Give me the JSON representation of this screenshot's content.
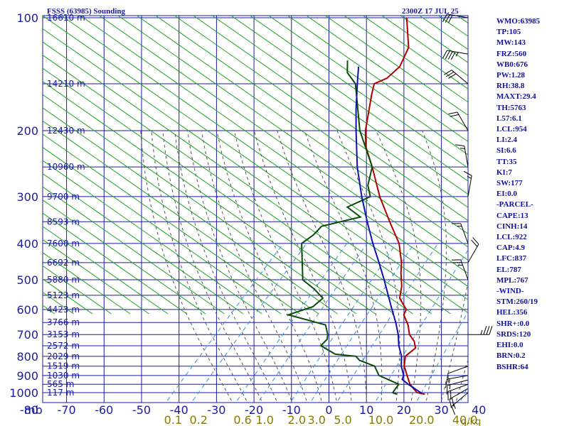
{
  "header": {
    "title": "FSSS (63985) Sounding",
    "datetime": "2300Z 17 JUL 25"
  },
  "indices": [
    "WMO:63985",
    "TP:105",
    "MW:143",
    "FRZ:560",
    "WB0:676",
    "PW:1.28",
    "RH:38.8",
    "MAXT:29.4",
    "TH:5763",
    "L57:6.1",
    "LCL:954",
    "LI:2.4",
    "SI:6.6",
    "TT:35",
    "KI:7",
    "SW:177",
    "EI:0.0",
    "-PARCEL-",
    "CAPE:13",
    "CINH:14",
    "LCL:922",
    "CAP:4.9",
    "LFC:837",
    "EL:787",
    "MPL:767",
    "-WIND-",
    "STM:260/19",
    "HEL:356",
    "SHR+:0.0",
    "SRDS:120",
    "EHI:0.0",
    "BRN:0.2",
    "BSHR:64"
  ],
  "colors": {
    "temperature": "#b00000",
    "dewpoint": "#0a4d0a",
    "parcel": "#1010b0",
    "grid": "#1a1aa8",
    "isotherm_label": "#1a1aa8",
    "dry_adiabat": "#19a319",
    "moist_adiabat": "#555555",
    "mixing_ratio": "#3a8fd6",
    "mixing_label": "#8a7a00",
    "wind_barb": "#000000"
  },
  "chart_data": {
    "type": "line",
    "chart": "skew-T log-p",
    "title": "FSSS (63985) Sounding",
    "xlabel": "",
    "ylabel": "mb",
    "ylim": [
      1000,
      100
    ],
    "pressure_ticks": [
      100,
      200,
      300,
      400,
      500,
      600,
      700,
      800,
      900,
      1000
    ],
    "pressure_lines": [
      100,
      150,
      200,
      250,
      300,
      350,
      400,
      450,
      500,
      550,
      600,
      650,
      700,
      750,
      800,
      850,
      900,
      950,
      1000
    ],
    "temperature_ticks": [
      -80,
      -70,
      -60,
      -50,
      -40,
      -30,
      -20,
      -10,
      0,
      10,
      20,
      30,
      40
    ],
    "height_labels": [
      {
        "p": 100,
        "label": "16610 m"
      },
      {
        "p": 150,
        "label": "14210 m"
      },
      {
        "p": 200,
        "label": "12430 m"
      },
      {
        "p": 250,
        "label": "10960 m"
      },
      {
        "p": 300,
        "label": "9700 m"
      },
      {
        "p": 350,
        "label": "8593 m"
      },
      {
        "p": 400,
        "label": "7600 m"
      },
      {
        "p": 450,
        "label": "6692 m"
      },
      {
        "p": 500,
        "label": "5880 m"
      },
      {
        "p": 550,
        "label": "5123 m"
      },
      {
        "p": 600,
        "label": "4423 m"
      },
      {
        "p": 650,
        "label": "3766 m"
      },
      {
        "p": 700,
        "label": "3153 m"
      },
      {
        "p": 750,
        "label": "2572 m"
      },
      {
        "p": 800,
        "label": "2029 m"
      },
      {
        "p": 850,
        "label": "1519 m"
      },
      {
        "p": 900,
        "label": "1030 m"
      },
      {
        "p": 950,
        "label": "565 m"
      },
      {
        "p": 1000,
        "label": "117 m"
      }
    ],
    "mixing_ratio_labels": [
      "0.1",
      "0.2",
      "0.6",
      "1.0",
      "2.0",
      "3.0",
      "5.0",
      "10.0",
      "20.0",
      "40.0"
    ],
    "mixing_ratio_unit": "g/kg",
    "series": [
      {
        "name": "Temperature",
        "points": [
          [
            1010,
            26
          ],
          [
            1000,
            23.5
          ],
          [
            950,
            19.5
          ],
          [
            900,
            16.5
          ],
          [
            850,
            13.4
          ],
          [
            800,
            11.2
          ],
          [
            760,
            11.8
          ],
          [
            730,
            9.8
          ],
          [
            700,
            6.8
          ],
          [
            660,
            4
          ],
          [
            620,
            0.3
          ],
          [
            600,
            -0.4
          ],
          [
            560,
            -5
          ],
          [
            520,
            -7.5
          ],
          [
            480,
            -11
          ],
          [
            450,
            -13.5
          ],
          [
            400,
            -19
          ],
          [
            350,
            -27
          ],
          [
            300,
            -36
          ],
          [
            250,
            -45.5
          ],
          [
            220,
            -52.5
          ],
          [
            200,
            -56.5
          ],
          [
            160,
            -64
          ],
          [
            150,
            -66
          ],
          [
            145,
            -64
          ],
          [
            135,
            -63.5
          ],
          [
            120,
            -66
          ],
          [
            100,
            -74
          ]
        ]
      },
      {
        "name": "Dewpoint",
        "points": [
          [
            1010,
            18.5
          ],
          [
            1000,
            17
          ],
          [
            950,
            16.5
          ],
          [
            900,
            9
          ],
          [
            850,
            5.5
          ],
          [
            820,
            0
          ],
          [
            800,
            -2
          ],
          [
            790,
            -8
          ],
          [
            750,
            -14
          ],
          [
            720,
            -14
          ],
          [
            700,
            -15
          ],
          [
            660,
            -18
          ],
          [
            620,
            -30.5
          ],
          [
            590,
            -26
          ],
          [
            560,
            -25.5
          ],
          [
            530,
            -30
          ],
          [
            500,
            -35.5
          ],
          [
            450,
            -40
          ],
          [
            400,
            -45
          ],
          [
            380,
            -44
          ],
          [
            360,
            -44
          ],
          [
            340,
            -36
          ],
          [
            320,
            -42
          ],
          [
            300,
            -38.5
          ],
          [
            280,
            -42
          ],
          [
            250,
            -45.5
          ],
          [
            200,
            -58
          ],
          [
            150,
            -71
          ],
          [
            140,
            -76
          ],
          [
            130,
            -79
          ]
        ]
      },
      {
        "name": "Parcel",
        "points": [
          [
            1005,
            25
          ],
          [
            950,
            19
          ],
          [
            922,
            16.2
          ],
          [
            900,
            15.6
          ],
          [
            850,
            12.6
          ],
          [
            800,
            10.2
          ],
          [
            750,
            6.8
          ],
          [
            700,
            3.8
          ],
          [
            650,
            0.1
          ],
          [
            600,
            -4.2
          ],
          [
            550,
            -8.8
          ],
          [
            500,
            -13.8
          ],
          [
            450,
            -19.5
          ],
          [
            400,
            -26
          ],
          [
            350,
            -33
          ],
          [
            300,
            -40.8
          ],
          [
            250,
            -49.5
          ],
          [
            200,
            -59
          ],
          [
            175,
            -64.5
          ],
          [
            150,
            -70.5
          ],
          [
            135,
            -74.5
          ]
        ]
      }
    ],
    "wind_barbs": [
      {
        "p": 1000,
        "dir": 230,
        "spd": 15
      },
      {
        "p": 975,
        "dir": 240,
        "spd": 20
      },
      {
        "p": 950,
        "dir": 250,
        "spd": 20
      },
      {
        "p": 925,
        "dir": 255,
        "spd": 15
      },
      {
        "p": 900,
        "dir": 260,
        "spd": 15
      },
      {
        "p": 850,
        "dir": 250,
        "spd": 10
      },
      {
        "p": 700,
        "dir": 90,
        "spd": 35
      },
      {
        "p": 500,
        "dir": 340,
        "spd": 25
      },
      {
        "p": 450,
        "dir": 30,
        "spd": 20
      },
      {
        "p": 400,
        "dir": 340,
        "spd": 15
      },
      {
        "p": 300,
        "dir": 10,
        "spd": 15
      },
      {
        "p": 250,
        "dir": 350,
        "spd": 15
      },
      {
        "p": 200,
        "dir": 330,
        "spd": 20
      },
      {
        "p": 150,
        "dir": 310,
        "spd": 30
      },
      {
        "p": 125,
        "dir": 280,
        "spd": 45
      },
      {
        "p": 100,
        "dir": 280,
        "spd": 30
      }
    ]
  }
}
